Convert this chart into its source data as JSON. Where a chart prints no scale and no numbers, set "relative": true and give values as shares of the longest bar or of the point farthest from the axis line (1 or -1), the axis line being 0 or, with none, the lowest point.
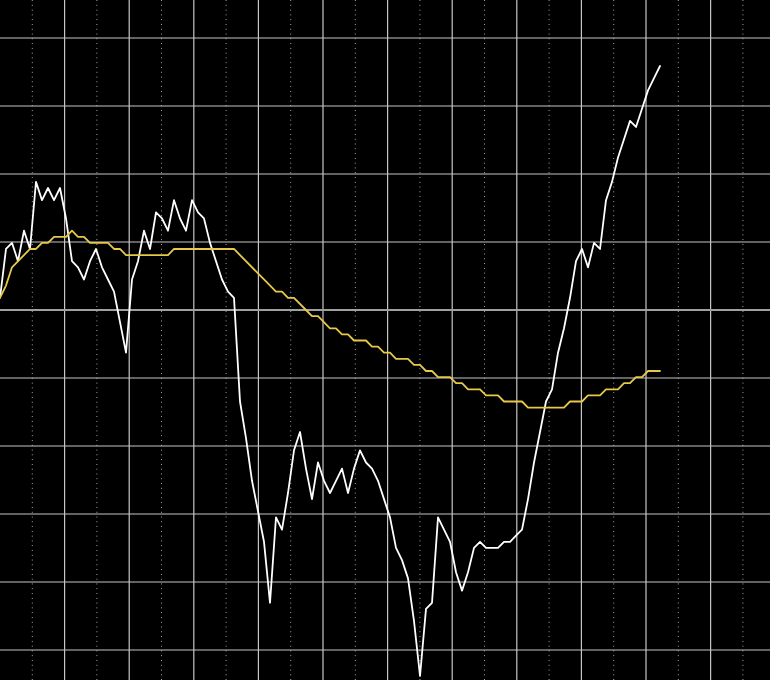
{
  "chart_data": {
    "type": "line",
    "relative": true,
    "grid": true,
    "categories": [
      null,
      null,
      null,
      null,
      null,
      null,
      null,
      null,
      null,
      null,
      null,
      null,
      null,
      null,
      null,
      null,
      null,
      null,
      null,
      null,
      null,
      null,
      null,
      null,
      null,
      null,
      null,
      null,
      null,
      null,
      null,
      null,
      null,
      null,
      null,
      null,
      null,
      null,
      null,
      null,
      null,
      null,
      null,
      null,
      null,
      null,
      null,
      null,
      null,
      null,
      null,
      null,
      null,
      null,
      null,
      null,
      null,
      null,
      null,
      null,
      null,
      null,
      null,
      null,
      null,
      null,
      null,
      null,
      null,
      null,
      null,
      null,
      null,
      null,
      null,
      null,
      null,
      null,
      null,
      null,
      null,
      null,
      null,
      null,
      null,
      null,
      null,
      null,
      null,
      null,
      null,
      null,
      null,
      null,
      null,
      null,
      null,
      null,
      null,
      null,
      null,
      null,
      null,
      null,
      null,
      null,
      null,
      null,
      null,
      null,
      null
    ],
    "series": [
      {
        "color": "#ffffff",
        "values": [
          0.62,
          0.7,
          0.71,
          0.68,
          0.73,
          0.7,
          0.81,
          0.78,
          0.8,
          0.78,
          0.8,
          0.75,
          0.68,
          0.67,
          0.65,
          0.68,
          0.7,
          0.67,
          0.65,
          0.63,
          0.58,
          0.53,
          0.65,
          0.68,
          0.73,
          0.7,
          0.76,
          0.75,
          0.73,
          0.78,
          0.75,
          0.73,
          0.78,
          0.76,
          0.75,
          0.71,
          0.68,
          0.65,
          0.63,
          0.62,
          0.45,
          0.39,
          0.32,
          0.27,
          0.22,
          0.12,
          0.26,
          0.24,
          0.3,
          0.37,
          0.4,
          0.34,
          0.29,
          0.35,
          0.32,
          0.3,
          0.32,
          0.34,
          0.3,
          0.34,
          0.37,
          0.35,
          0.34,
          0.32,
          0.29,
          0.26,
          0.21,
          0.19,
          0.16,
          0.09,
          0,
          0.11,
          0.12,
          0.26,
          0.24,
          0.22,
          0.17,
          0.14,
          0.17,
          0.21,
          0.22,
          0.21,
          0.21,
          0.21,
          0.22,
          0.22,
          0.23,
          0.24,
          0.29,
          0.35,
          0.4,
          0.45,
          0.47,
          0.53,
          0.57,
          0.62,
          0.68,
          0.7,
          0.67,
          0.71,
          0.7,
          0.78,
          0.81,
          0.85,
          0.88,
          0.91,
          0.9,
          0.93,
          0.96,
          0.98,
          1
        ]
      },
      {
        "color": "#e6c84a",
        "values": [
          0.62,
          0.64,
          0.67,
          0.68,
          0.69,
          0.7,
          0.7,
          0.71,
          0.71,
          0.72,
          0.72,
          0.72,
          0.73,
          0.72,
          0.72,
          0.71,
          0.71,
          0.71,
          0.71,
          0.7,
          0.7,
          0.69,
          0.69,
          0.69,
          0.69,
          0.69,
          0.69,
          0.69,
          0.69,
          0.7,
          0.7,
          0.7,
          0.7,
          0.7,
          0.7,
          0.7,
          0.7,
          0.7,
          0.7,
          0.7,
          0.69,
          0.68,
          0.67,
          0.66,
          0.65,
          0.64,
          0.63,
          0.63,
          0.62,
          0.62,
          0.61,
          0.6,
          0.59,
          0.59,
          0.58,
          0.57,
          0.57,
          0.56,
          0.56,
          0.55,
          0.55,
          0.55,
          0.54,
          0.54,
          0.53,
          0.53,
          0.52,
          0.52,
          0.52,
          0.51,
          0.51,
          0.5,
          0.5,
          0.49,
          0.49,
          0.49,
          0.48,
          0.48,
          0.47,
          0.47,
          0.47,
          0.46,
          0.46,
          0.46,
          0.45,
          0.45,
          0.45,
          0.45,
          0.44,
          0.44,
          0.44,
          0.44,
          0.44,
          0.44,
          0.44,
          0.45,
          0.45,
          0.45,
          0.46,
          0.46,
          0.46,
          0.47,
          0.47,
          0.47,
          0.48,
          0.48,
          0.49,
          0.49,
          0.5,
          0.5,
          0.5
        ]
      }
    ],
    "ref_lines": [
      {
        "axis": "y",
        "value": 0.6,
        "color": "#a0a0a0"
      }
    ]
  }
}
